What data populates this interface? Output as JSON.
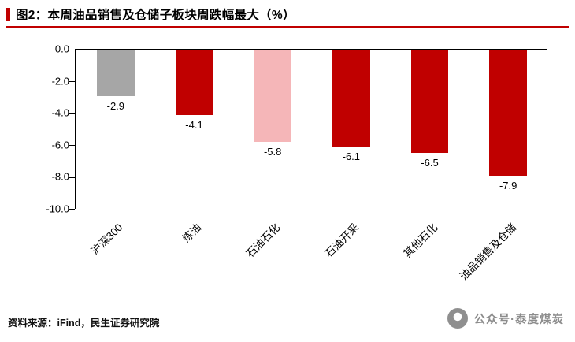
{
  "header": {
    "title": "图2：本周油品销售及仓储子板块周跌幅最大（%）"
  },
  "chart_data": {
    "type": "bar",
    "title": "本周油品销售及仓储子板块周跌幅最大（%）",
    "categories": [
      "沪深300",
      "炼油",
      "石油石化",
      "石油开采",
      "其他石化",
      "油品销售及仓储"
    ],
    "values": [
      -2.9,
      -4.1,
      -5.8,
      -6.1,
      -6.5,
      -7.9
    ],
    "value_labels": [
      "-2.9",
      "-4.1",
      "-5.8",
      "-6.1",
      "-6.5",
      "-7.9"
    ],
    "bar_colors": [
      "#a6a6a6",
      "#c00000",
      "#f5b6b8",
      "#c00000",
      "#c00000",
      "#c00000"
    ],
    "ylim": [
      -10.0,
      0.0
    ],
    "yticks": [
      "0.0",
      "-2.0",
      "-4.0",
      "-6.0",
      "-8.0",
      "-10.0"
    ],
    "grid": false,
    "legend_position": "none",
    "xlabel": "",
    "ylabel": ""
  },
  "footer": {
    "source": "资料来源：iFind，民生证券研究院",
    "watermark": "公众号·泰度煤炭"
  },
  "colors": {
    "accent": "#c00000",
    "benchmark_bar": "#a6a6a6",
    "highlight_bar": "#f5b6b8",
    "axis": "#000000",
    "watermark_gray": "#8c8c8c"
  }
}
